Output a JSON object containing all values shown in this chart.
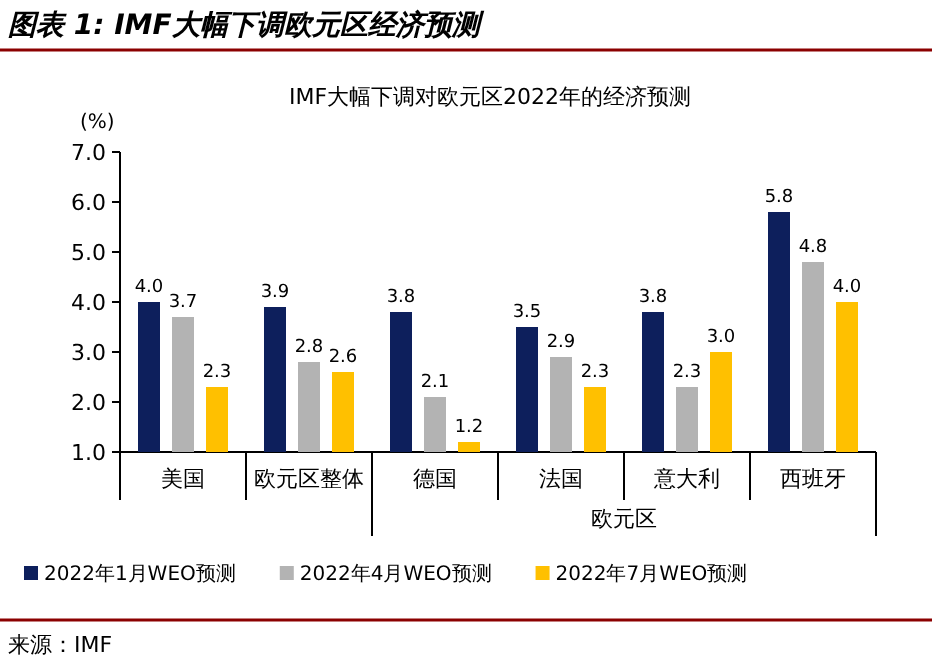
{
  "chart_data": {
    "type": "bar",
    "title": "图表 1: IMF大幅下调欧元区经济预测",
    "subtitle": "IMF大幅下调对欧元区2022年的经济预测",
    "ylabel": "(%)",
    "categories": [
      "美国",
      "欧元区整体",
      "德国",
      "法国",
      "意大利",
      "西班牙"
    ],
    "series": [
      {
        "name": "2022年1月WEO预测",
        "color": "#0d1f5c",
        "values": [
          4.0,
          3.9,
          3.8,
          3.5,
          3.8,
          5.8
        ],
        "value_labels": [
          "4.0",
          "3.9",
          "3.8",
          "3.5",
          "3.8",
          "5.8"
        ]
      },
      {
        "name": "2022年4月WEO预测",
        "color": "#b3b3b3",
        "values": [
          3.7,
          2.8,
          2.1,
          2.9,
          2.3,
          4.8
        ],
        "value_labels": [
          "3.7",
          "2.8",
          "2.1",
          "2.9",
          "2.3",
          "4.8"
        ]
      },
      {
        "name": "2022年7月WEO预测",
        "color": "#ffc000",
        "values": [
          2.3,
          2.6,
          1.2,
          2.3,
          3.0,
          4.0
        ],
        "value_labels": [
          "2.3",
          "2.6",
          "1.2",
          "2.3",
          "3.0",
          "4.0"
        ]
      }
    ],
    "ylim": [
      1,
      7
    ],
    "yticks": [
      {
        "value": 1,
        "label": "1.0"
      },
      {
        "value": 2,
        "label": "2.0"
      },
      {
        "value": 3,
        "label": "3.0"
      },
      {
        "value": 4,
        "label": "4.0"
      },
      {
        "value": 5,
        "label": "5.0"
      },
      {
        "value": 6,
        "label": "6.0"
      },
      {
        "value": 7,
        "label": "7.0"
      }
    ],
    "legend": "bottom",
    "annotations": [
      "欧元区",
      "来源：IMF"
    ]
  }
}
